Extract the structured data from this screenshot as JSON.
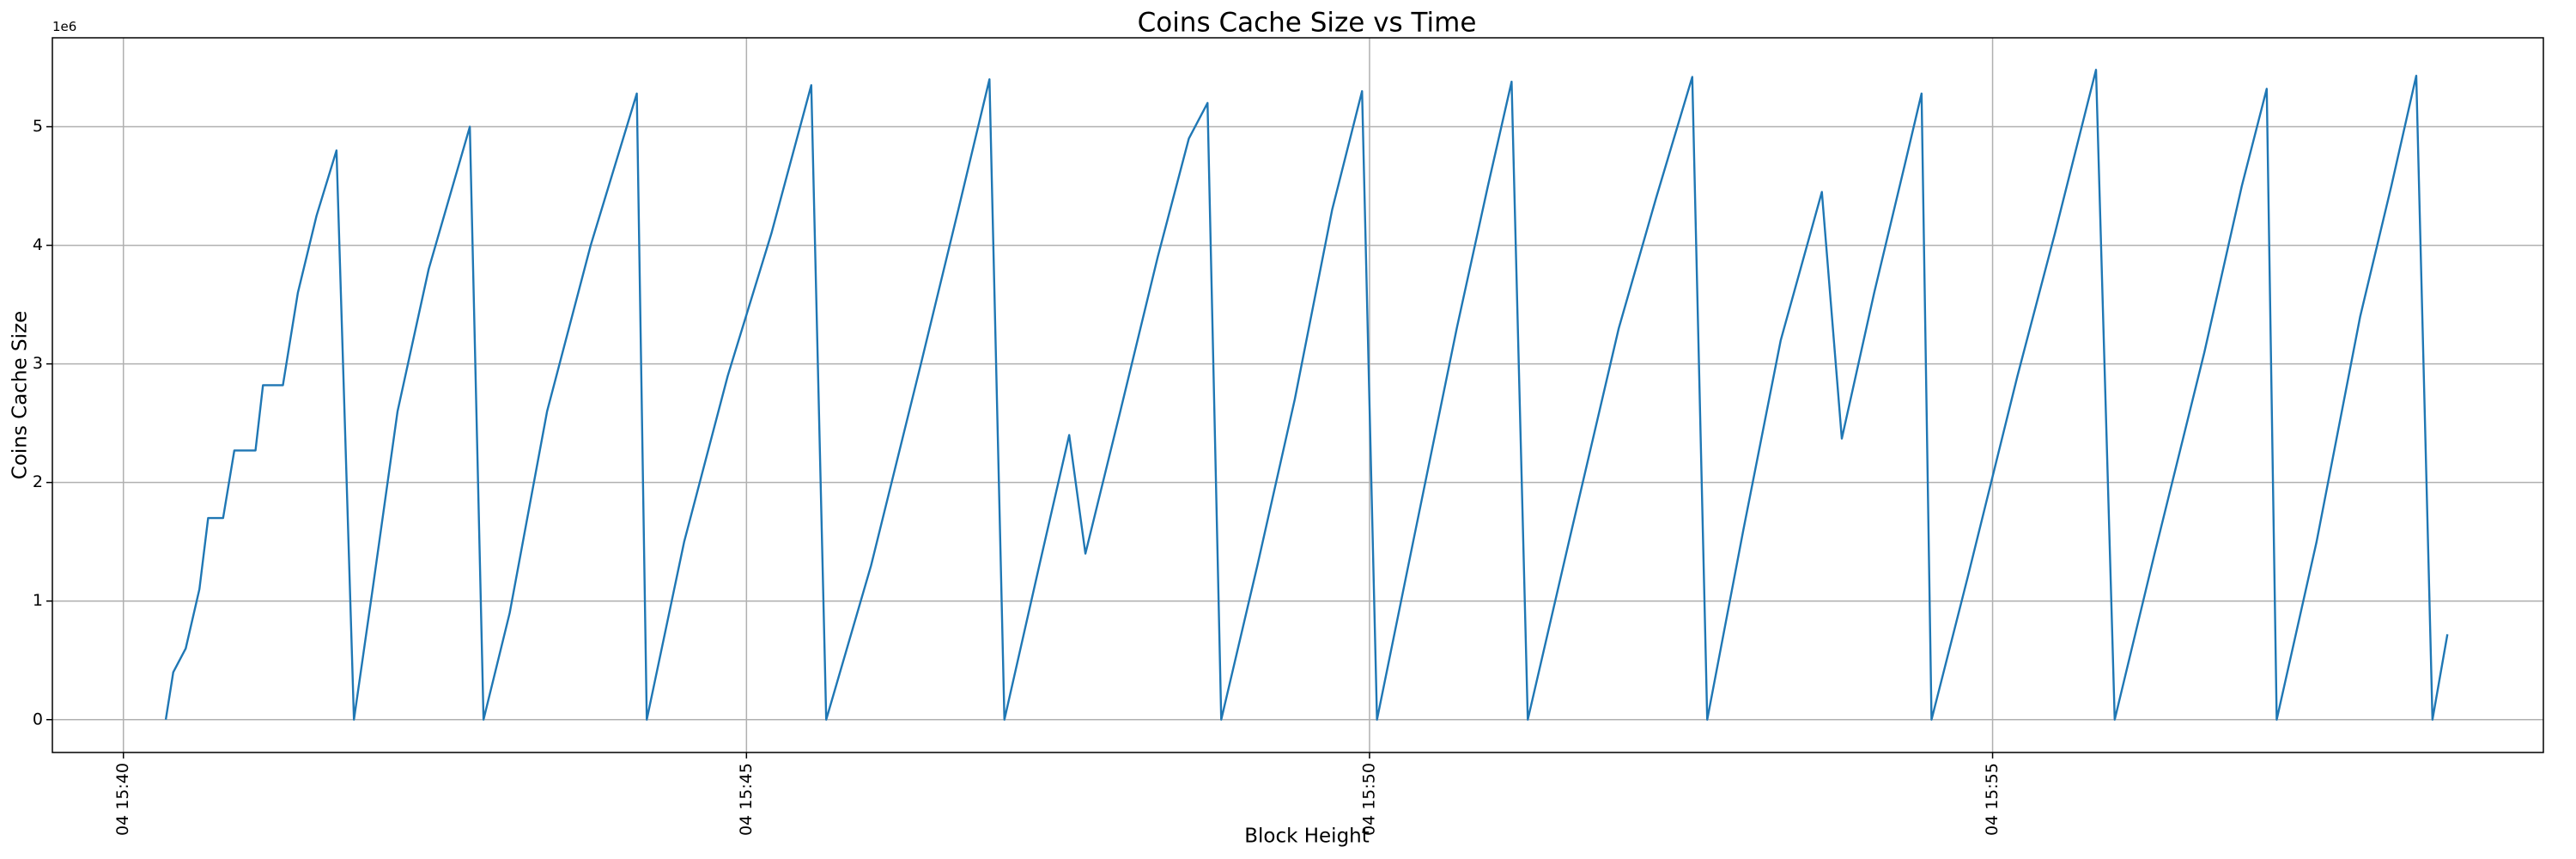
{
  "chart_data": {
    "type": "line",
    "title": "Coins Cache Size vs Time",
    "x_label": "Block Height",
    "y_label": "Coins Cache Size",
    "y_offset_text": "1e6",
    "color": "#1f77b4",
    "grid": true,
    "xlim": [
      39.43,
      59.42
    ],
    "ylim": [
      -0.277,
      5.75
    ],
    "xticks": [
      {
        "value": 40,
        "label": "04 15:40"
      },
      {
        "value": 45,
        "label": "04 15:45"
      },
      {
        "value": 50,
        "label": "04 15:50"
      },
      {
        "value": 55,
        "label": "04 15:55"
      }
    ],
    "yticks": [
      0,
      1,
      2,
      3,
      4,
      5
    ],
    "x": [
      40.34,
      40.4,
      40.5,
      40.61,
      40.68,
      40.8,
      40.89,
      41.06,
      41.12,
      41.28,
      41.4,
      41.55,
      41.71,
      41.85,
      42.0,
      42.2,
      42.45,
      42.78,
      42.89,
      43.1,
      43.4,
      43.75,
      44.12,
      44.2,
      44.5,
      44.85,
      45.2,
      45.52,
      45.64,
      46.0,
      46.4,
      46.7,
      46.95,
      47.07,
      47.35,
      47.59,
      47.72,
      48.0,
      48.3,
      48.55,
      48.7,
      48.81,
      49.1,
      49.4,
      49.7,
      49.94,
      50.06,
      50.35,
      50.7,
      50.95,
      51.14,
      51.27,
      51.6,
      52.0,
      52.3,
      52.59,
      52.71,
      53.0,
      53.3,
      53.63,
      53.79,
      54.05,
      54.3,
      54.43,
      54.51,
      54.8,
      55.2,
      55.5,
      55.83,
      55.98,
      56.3,
      56.7,
      57.0,
      57.2,
      57.28,
      57.6,
      57.95,
      58.2,
      58.4,
      58.53,
      58.65
    ],
    "values": [
      0,
      0.4,
      0.6,
      1.1,
      1.7,
      1.7,
      2.27,
      2.27,
      2.82,
      2.82,
      3.6,
      4.25,
      4.8,
      0,
      1.1,
      2.6,
      3.8,
      5.0,
      0,
      0.9,
      2.6,
      4.0,
      5.28,
      0,
      1.5,
      2.9,
      4.1,
      5.35,
      0,
      1.3,
      3.0,
      4.3,
      5.4,
      0,
      1.3,
      2.4,
      1.4,
      2.6,
      3.9,
      4.9,
      5.2,
      0,
      1.3,
      2.7,
      4.3,
      5.3,
      0,
      1.5,
      3.3,
      4.5,
      5.38,
      0,
      1.5,
      3.3,
      4.4,
      5.42,
      0,
      1.6,
      3.2,
      4.45,
      2.37,
      3.6,
      4.7,
      5.28,
      0,
      1.2,
      2.9,
      4.1,
      5.48,
      0,
      1.4,
      3.1,
      4.5,
      5.32,
      0,
      1.5,
      3.4,
      4.5,
      5.43,
      0,
      0.72
    ]
  }
}
